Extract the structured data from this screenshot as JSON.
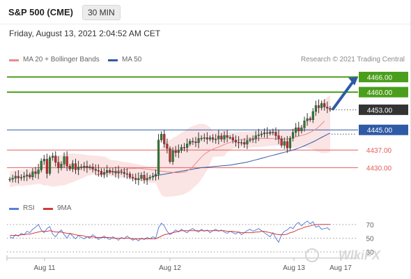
{
  "header": {
    "symbol": "S&P 500 (CME)",
    "timeframe": "30 MIN",
    "datetime": "Friday, August 13, 2021 2:04:52 AM CET"
  },
  "legend": {
    "ma20": "MA 20 + Bollinger Bands",
    "ma50": "MA 50",
    "attribution": "Research © 2021 Trading Central"
  },
  "rsi_legend": {
    "rsi": "RSI",
    "ma9": "9MA"
  },
  "watermark": "WikiFX",
  "colors": {
    "support_resistance_green": "#4b9e1c",
    "ma50_blue": "#2f5aa6",
    "ma20_red": "#e88b8b",
    "bollinger_fill": "#fbe1e1",
    "support_red": "#e45b5b",
    "current_price": "#333333",
    "rsi_blue": "#5b7fd8",
    "rsi_ma_red": "#d23b3b",
    "arrow": "#2f5aa6"
  },
  "chart_data": [
    {
      "type": "candlestick",
      "title": "S&P 500 (CME)",
      "interval": "30 MIN",
      "ylim": [
        4424,
        4470
      ],
      "x_tick_labels": [
        "Aug 11",
        "Aug 12",
        "Aug 13",
        "Aug 17"
      ],
      "levels": [
        {
          "value": 4466.0,
          "label": "4466.00",
          "kind": "resistance",
          "color": "#4b9e1c"
        },
        {
          "value": 4460.0,
          "label": "4460.00",
          "kind": "resistance",
          "color": "#4b9e1c"
        },
        {
          "value": 4453.0,
          "label": "4453.00",
          "kind": "last",
          "color": "#333333"
        },
        {
          "value": 4445.0,
          "label": "4445.00",
          "kind": "pivot",
          "color": "#2f5aa6"
        },
        {
          "value": 4437.0,
          "label": "4437.00",
          "kind": "support",
          "color": "#e45b5b"
        },
        {
          "value": 4430.0,
          "label": "4430.00",
          "kind": "support",
          "color": "#e45b5b"
        }
      ],
      "close": [
        4425.4,
        4425.8,
        4426.6,
        4425.9,
        4426.2,
        4426.6,
        4427.1,
        4426.3,
        4428.4,
        4427.6,
        4429.1,
        4432.6,
        4433.4,
        4427.7,
        4434.0,
        4434.6,
        4432.1,
        4429.9,
        4431.4,
        4434.4,
        4430.6,
        4429.5,
        4431.6,
        4429.2,
        4430.3,
        4430.1,
        4430.6,
        4429.9,
        4430.3,
        4429.4,
        4428.9,
        4428.6,
        4427.3,
        4428.1,
        4428.9,
        4428.3,
        4428.5,
        4427.8,
        4428.4,
        4428.2,
        4427.6,
        4427.5,
        4426.2,
        4425.8,
        4425.2,
        4425.7,
        4427.0,
        4425.1,
        4425.8,
        4426.2,
        4426.6,
        4427.4,
        4441.0,
        4443.3,
        4439.4,
        4437.6,
        4432.4,
        4436.7,
        4436.0,
        4436.8,
        4438.1,
        4438.0,
        4439.4,
        4440.5,
        4440.3,
        4439.9,
        4441.6,
        4441.7,
        4441.9,
        4441.3,
        4441.9,
        4441.2,
        4441.4,
        4442.6,
        4441.3,
        4442.8,
        4442.0,
        4442.0,
        4440.9,
        4440.1,
        4439.8,
        4440.0,
        4439.3,
        4440.8,
        4441.1,
        4441.4,
        4442.7,
        4443.0,
        4443.4,
        4443.9,
        4443.6,
        4444.1,
        4444.1,
        4442.7,
        4441.5,
        4438.9,
        4440.4,
        4437.8,
        4441.7,
        4444.0,
        4445.8,
        4444.6,
        4445.8,
        4448.6,
        4449.5,
        4449.0,
        4452.3,
        4454.7,
        4453.8,
        4455.5,
        4454.1,
        4453.6,
        4453.0
      ],
      "ma20": [
        4427,
        4427.3,
        4427.6,
        4427.8,
        4428,
        4428.1,
        4428.3,
        4428.5,
        4428.7,
        4428.9,
        4429.1,
        4429.4,
        4429.6,
        4429.6,
        4429.7,
        4429.8,
        4429.7,
        4429.5,
        4429.4,
        4429.3,
        4429.1,
        4429,
        4428.8,
        4428.6,
        4428.5,
        4428.3,
        4428.2,
        4428.1,
        4428,
        4428,
        4428.1,
        4428.2,
        4428.7,
        4429.4,
        4430.4,
        4431.7,
        4433,
        4434.2,
        4435.3,
        4436.1,
        4436.8,
        4437.3,
        4437.8,
        4438.2,
        4438.7,
        4439.2,
        4439.6,
        4440,
        4440.4,
        4440.7,
        4441,
        4441.2,
        4441.3,
        4441.4,
        4441.5,
        4441.5,
        4441.5,
        4441.5,
        4441.6,
        4441.6,
        4441.6,
        4441.6,
        4441.5,
        4441.4,
        4441.3,
        4441.3,
        4441.3,
        4441.4,
        4441.6,
        4441.9,
        4442.2,
        4442.5,
        4442.8,
        4443.1,
        4443.5,
        4444,
        4444.6,
        4445.3,
        4446.2,
        4447.3,
        4448.5
      ],
      "ma20_start_index": 30,
      "ma50": [
        4426.6,
        4426.8,
        4427,
        4427.2,
        4427.4,
        4427.6,
        4427.8,
        4428.0,
        4428.2,
        4428.4,
        4428.6,
        4428.8,
        4429.0,
        4429.2,
        4429.4,
        4429.6,
        4429.8,
        4430.0,
        4430.1,
        4430.2,
        4430.3,
        4430.4,
        4430.5,
        4430.6,
        4430.7,
        4430.8,
        4430.9,
        4431.0,
        4431.2,
        4431.4,
        4431.6,
        4431.8,
        4432.0,
        4432.2,
        4432.5,
        4432.8,
        4433.1,
        4433.4,
        4433.7,
        4434.0,
        4434.3,
        4434.6,
        4434.9,
        4435.2,
        4435.5,
        4435.8,
        4436.1,
        4436.4,
        4436.7,
        4437.0,
        4437.4,
        4437.8,
        4438.2,
        4438.7,
        4439.2,
        4439.7,
        4440.2,
        4440.8,
        4441.4,
        4442.0,
        4442.6,
        4443.2,
        4443.7
      ],
      "ma50_start_index": 50
    },
    {
      "type": "line",
      "title": "RSI",
      "ylim": [
        25,
        80
      ],
      "y_tick_labels": [
        "70",
        "50",
        "30"
      ],
      "y_ticks": [
        70,
        50,
        30
      ],
      "series": [
        {
          "name": "RSI",
          "color": "#5b7fd8",
          "values": [
            52,
            50,
            55,
            53,
            57,
            55,
            60,
            58,
            63,
            66,
            70,
            62,
            58,
            64,
            67,
            56,
            52,
            58,
            62,
            55,
            50,
            57,
            53,
            49,
            54,
            51,
            49,
            52,
            50,
            55,
            52,
            48,
            51,
            53,
            50,
            48,
            52,
            50,
            47,
            51,
            49,
            53,
            50,
            47,
            49,
            46,
            50,
            48,
            51,
            49,
            52,
            50,
            65,
            72,
            68,
            60,
            55,
            58,
            62,
            59,
            63,
            60,
            58,
            62,
            64,
            61,
            59,
            63,
            60,
            62,
            58,
            61,
            63,
            60,
            62,
            59,
            57,
            60,
            58,
            56,
            59,
            55,
            58,
            61,
            63,
            60,
            62,
            64,
            61,
            58,
            55,
            52,
            58,
            50,
            44,
            55,
            60,
            62,
            66,
            64,
            70,
            73,
            68,
            72,
            75,
            71,
            74,
            66,
            68,
            63,
            64,
            65,
            62
          ]
        },
        {
          "name": "9MA",
          "color": "#d23b3b",
          "values": [
            54,
            54,
            54,
            54,
            55,
            55,
            56,
            56,
            57,
            58,
            59,
            60,
            60,
            60,
            61,
            60,
            59,
            59,
            59,
            58,
            57,
            57,
            56,
            55,
            54,
            54,
            53,
            52,
            52,
            52,
            51,
            51,
            51,
            51,
            51,
            51,
            50,
            50,
            50,
            50,
            50,
            50,
            50,
            49,
            49,
            49,
            49,
            49,
            49,
            49,
            49,
            49,
            51,
            53,
            55,
            56,
            57,
            58,
            59,
            60,
            61,
            61,
            61,
            61,
            61,
            61,
            61,
            61,
            61,
            61,
            61,
            61,
            61,
            61,
            61,
            61,
            60,
            60,
            60,
            59,
            59,
            58,
            58,
            58,
            58,
            58,
            59,
            59,
            60,
            60,
            59,
            58,
            57,
            56,
            55,
            55,
            55,
            56,
            58,
            59,
            61,
            63,
            64,
            66,
            67,
            68,
            69,
            70,
            70,
            70,
            70,
            70,
            70
          ]
        }
      ]
    }
  ]
}
